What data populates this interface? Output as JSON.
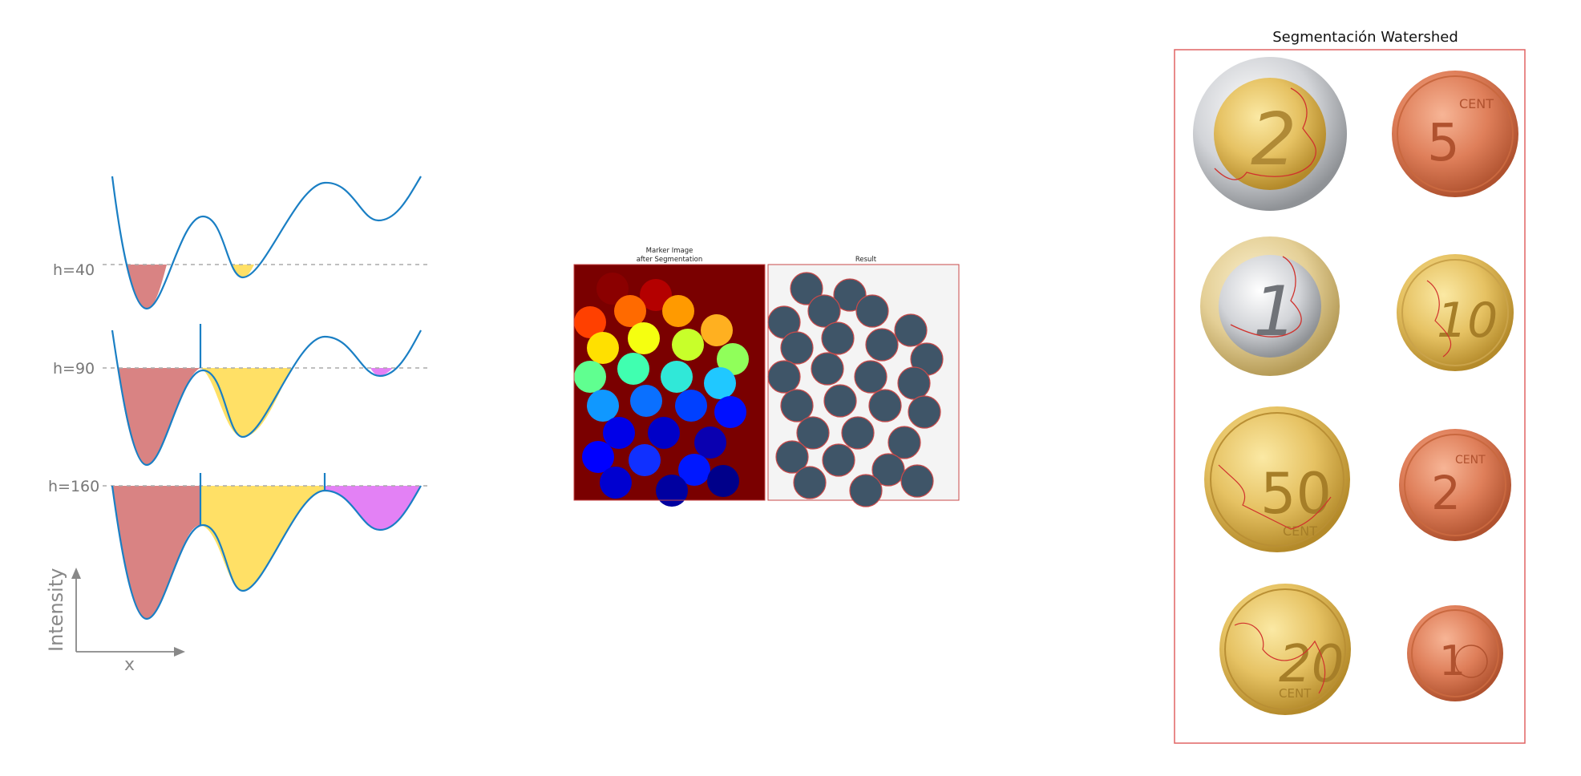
{
  "flooding": {
    "levels": [
      {
        "label": "h=40"
      },
      {
        "label": "h=90"
      },
      {
        "label": "h=160"
      }
    ],
    "y_axis_label": "Intensity",
    "x_axis_label": "x",
    "colors": {
      "basin1": "#d98383",
      "basin2": "#ffe066",
      "basin3": "#e381f5",
      "curve": "#1a7fc4",
      "dash": "#aaaaaa"
    }
  },
  "markers": {
    "left_title_line1": "Marker Image",
    "left_title_line2": "after Segmentation",
    "right_title": "Result",
    "colors": {
      "background": "#7a0000",
      "coin_fill": "#3f5568",
      "contour": "#c84a4a"
    }
  },
  "coins": {
    "title": "Segmentación Watershed",
    "frame_color": "#e06464",
    "coin_icons": [
      "euro-2-coin-icon",
      "cent-5-coin-icon",
      "euro-1-coin-icon",
      "cent-10-coin-icon",
      "cent-50-coin-icon",
      "cent-2-coin-icon",
      "cent-20-coin-icon",
      "cent-1-coin-icon"
    ]
  }
}
